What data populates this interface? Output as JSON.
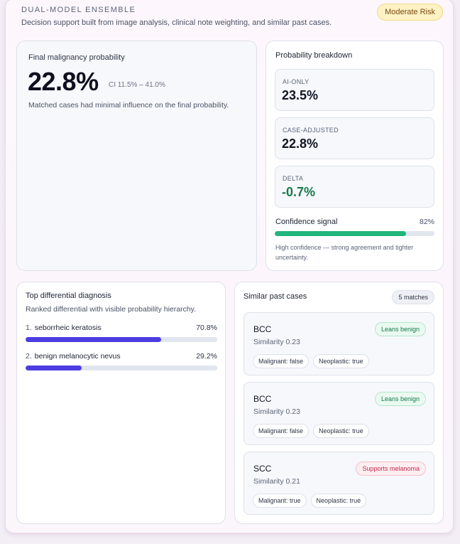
{
  "header": {
    "eyebrow": "DUAL-MODEL ENSEMBLE",
    "subtitle": "Decision support built from image analysis, clinical note weighting, and similar past cases.",
    "risk_badge": "Moderate Risk"
  },
  "final": {
    "label": "Final malignancy probability",
    "value": "22.8%",
    "ci": "CI 11.5% – 41.0%",
    "note": "Matched cases had minimal influence on the final probability."
  },
  "breakdown": {
    "title": "Probability breakdown",
    "items": [
      {
        "key": "AI-ONLY",
        "value": "23.5%"
      },
      {
        "key": "CASE-ADJUSTED",
        "value": "22.8%"
      },
      {
        "key": "DELTA",
        "value": "-0.7%"
      }
    ],
    "confidence_label": "Confidence signal",
    "confidence_pct": "82%",
    "confidence_fraction": 0.82,
    "confidence_note": "High confidence — strong agreement and tighter uncertainty."
  },
  "differential": {
    "title": "Top differential diagnosis",
    "subtitle": "Ranked differential with visible probability hierarchy.",
    "rows": [
      {
        "index": "1.",
        "name": "seborrheic keratosis",
        "pct": "70.8%",
        "fraction": 0.708
      },
      {
        "index": "2.",
        "name": "benign melanocytic nevus",
        "pct": "29.2%",
        "fraction": 0.292
      }
    ]
  },
  "similar": {
    "title": "Similar past cases",
    "matches": "5 matches",
    "cases": [
      {
        "dx": "BCC",
        "similarity": "Similarity 0.23",
        "tag": "Leans benign",
        "malignant": "Malignant: false",
        "neoplastic": "Neoplastic: true"
      },
      {
        "dx": "BCC",
        "similarity": "Similarity 0.23",
        "tag": "Leans benign",
        "malignant": "Malignant: false",
        "neoplastic": "Neoplastic: true"
      },
      {
        "dx": "SCC",
        "similarity": "Similarity 0.21",
        "tag": "Supports melanoma",
        "malignant": "Malignant: true",
        "neoplastic": "Neoplastic: true"
      }
    ]
  },
  "colors": {
    "confidence_bar": "#1fb57c",
    "differential_bar": "#4b3de0",
    "delta_negative": "#157a4a",
    "risk_badge_bg": "#fdf2c4"
  }
}
